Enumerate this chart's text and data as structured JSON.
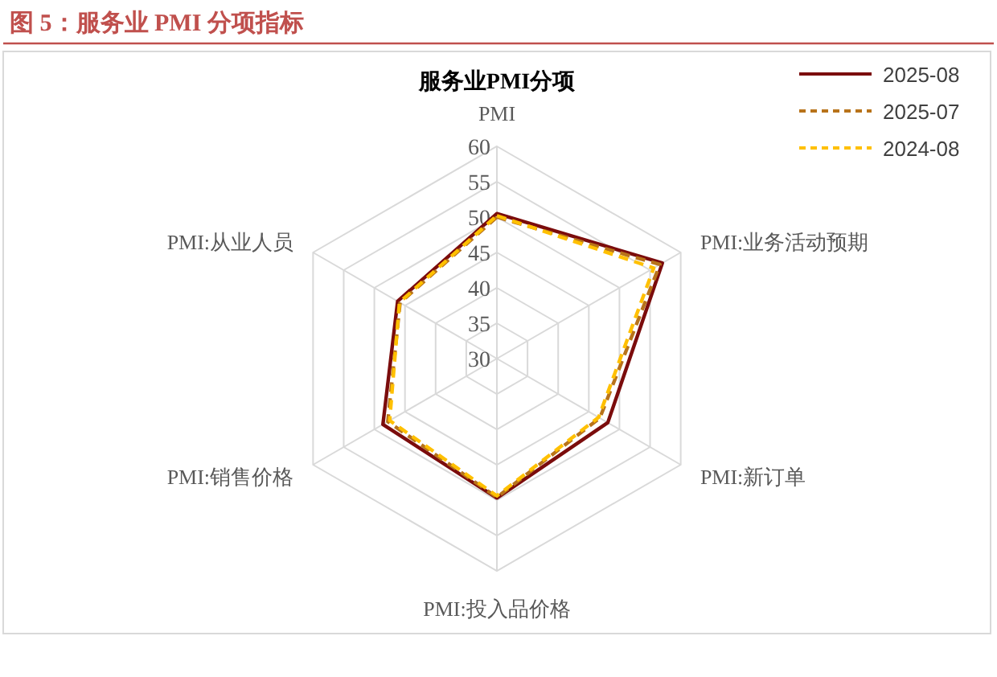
{
  "chart_data": {
    "type": "radar",
    "title": "图 5：服务业 PMI 分项指标",
    "subtitle": "服务业PMI分项",
    "categories": [
      "PMI",
      "PMI:业务活动预期",
      "PMI:新订单",
      "PMI:投入品价格",
      "PMI:销售价格",
      "PMI:从业人员"
    ],
    "series": [
      {
        "name": "2025-08",
        "color": "#7b0c0c",
        "line_style": "solid",
        "values": [
          50.5,
          57.0,
          48.1,
          49.7,
          48.6,
          46.2
        ]
      },
      {
        "name": "2025-07",
        "color": "#b8731a",
        "line_style": "dashed",
        "values": [
          50.0,
          56.6,
          46.8,
          49.6,
          47.8,
          45.8
        ]
      },
      {
        "name": "2024-08",
        "color": "#ffc000",
        "line_style": "dashed",
        "values": [
          50.2,
          55.6,
          46.6,
          49.4,
          47.5,
          45.9
        ]
      }
    ],
    "ylim": [
      30,
      60
    ],
    "yticks": [
      30,
      35,
      40,
      45,
      50,
      55,
      60
    ],
    "grid": true,
    "legend": "top right"
  }
}
